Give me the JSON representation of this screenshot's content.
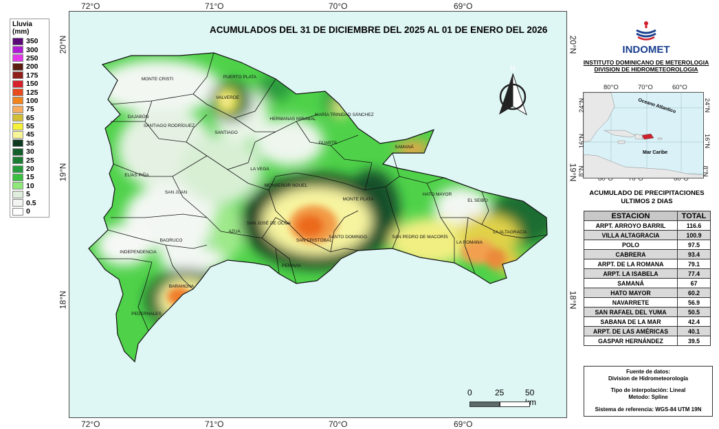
{
  "title": "ACUMULADOS DEL 31 DE DICIEMBRE DEL 2025 AL 01 DE ENERO DEL 2026",
  "legend": {
    "title": "Lluvia (mm)",
    "items": [
      {
        "label": "350",
        "color": "#5a0a78"
      },
      {
        "label": "300",
        "color": "#b01bd6"
      },
      {
        "label": "250",
        "color": "#e238ea"
      },
      {
        "label": "200",
        "color": "#5b1d12"
      },
      {
        "label": "175",
        "color": "#8e1f1a"
      },
      {
        "label": "150",
        "color": "#d6202c"
      },
      {
        "label": "125",
        "color": "#e84a1d"
      },
      {
        "label": "100",
        "color": "#f2841d"
      },
      {
        "label": "75",
        "color": "#f6ad62"
      },
      {
        "label": "65",
        "color": "#d3bf35"
      },
      {
        "label": "55",
        "color": "#f5f03a"
      },
      {
        "label": "45",
        "color": "#f8f596"
      },
      {
        "label": "35",
        "color": "#0f3a1f"
      },
      {
        "label": "30",
        "color": "#155e2c"
      },
      {
        "label": "25",
        "color": "#1d7c33"
      },
      {
        "label": "20",
        "color": "#279b3c"
      },
      {
        "label": "15",
        "color": "#39c13f"
      },
      {
        "label": "10",
        "color": "#8ee87a"
      },
      {
        "label": "5",
        "color": "#dfeedd"
      },
      {
        "label": "0.5",
        "color": "#f3f5f3"
      },
      {
        "label": "0",
        "color": "#ffffff"
      }
    ]
  },
  "ticks": {
    "top": [
      "72°O",
      "71°O",
      "70°O",
      "69°O"
    ],
    "bottom": [
      "72°O",
      "71°O",
      "70°O",
      "69°O"
    ],
    "left": [
      "20°N",
      "19°N",
      "18°N"
    ],
    "right": [
      "20°N",
      "19°N",
      "18°N"
    ]
  },
  "north": "N",
  "provinces": [
    {
      "name": "MONTE CRISTI"
    },
    {
      "name": "PUERTO PLATA"
    },
    {
      "name": "VALVERDE"
    },
    {
      "name": "DAJABÓN"
    },
    {
      "name": "SANTIAGO RODRÍGUEZ"
    },
    {
      "name": "SANTIAGO"
    },
    {
      "name": "HERMANAS MIRABAL"
    },
    {
      "name": "MARÍA TRINIDAD SÁNCHEZ"
    },
    {
      "name": "DUARTE"
    },
    {
      "name": "SAMANÁ"
    },
    {
      "name": "LA VEGA"
    },
    {
      "name": "ELÍAS PIÑA"
    },
    {
      "name": "SAN JUAN"
    },
    {
      "name": "MONSEÑOR NOUEL"
    },
    {
      "name": "MONTE PLATA"
    },
    {
      "name": "HATO MAYOR"
    },
    {
      "name": "EL SEIBO"
    },
    {
      "name": "LA ALTAGRACIA"
    },
    {
      "name": "SAN JOSÉ DE OCOA"
    },
    {
      "name": "AZUA"
    },
    {
      "name": "SAN CRISTÓBAL"
    },
    {
      "name": "SANTO DOMINGO"
    },
    {
      "name": "SAN PEDRO DE MACORÍS"
    },
    {
      "name": "LA ROMANA"
    },
    {
      "name": "BAORUCO"
    },
    {
      "name": "INDEPENDENCIA"
    },
    {
      "name": "BARAHONA"
    },
    {
      "name": "PERAVIA"
    },
    {
      "name": "PEDERNALES"
    }
  ],
  "logo": {
    "name": "INDOMET",
    "line1": "INSTITUTO DOMINICANO DE METEROLOGIA",
    "line2": "DIVISION DE HIDROMETEOROLOGIA"
  },
  "inset": {
    "ticks_top": [
      "80°O",
      "70°O",
      "60°O"
    ],
    "ticks_bottom": [
      "80°O",
      "70°O",
      "60°O"
    ],
    "ticks_left": [
      "24°N",
      "16°N",
      "8°N"
    ],
    "ticks_right": [
      "24°N",
      "16°N",
      "8°N"
    ],
    "ocean_label": "Oceano Atlantico",
    "sea_label": "Mar Caribe"
  },
  "accum_title_1": "ACUMULADO DE PRECIPITACIONES",
  "accum_title_2": "ULTIMOS 2 DIAS",
  "table": {
    "headers": [
      "ESTACION",
      "TOTAL"
    ],
    "rows": [
      {
        "station": "ARPT. ARROYO BARRIL",
        "total": "116.6"
      },
      {
        "station": "VILLA ALTAGRACIA",
        "total": "100.9"
      },
      {
        "station": "POLO",
        "total": "97.5"
      },
      {
        "station": "CABRERA",
        "total": "93.4"
      },
      {
        "station": "ARPT. DE LA ROMANA",
        "total": "79.1"
      },
      {
        "station": "ARPT. LA ISABELA",
        "total": "77.4"
      },
      {
        "station": "SAMANÁ",
        "total": "67"
      },
      {
        "station": "HATO MAYOR",
        "total": "60.2"
      },
      {
        "station": "NAVARRETE",
        "total": "56.9"
      },
      {
        "station": "SAN RAFAEL DEL YUMA",
        "total": "50.5"
      },
      {
        "station": "SABANA DE LA MAR",
        "total": "42.4"
      },
      {
        "station": "ARPT. DE LAS AMÉRICAS",
        "total": "40.1"
      },
      {
        "station": "GASPAR HERNÁNDEZ",
        "total": "39.5"
      }
    ]
  },
  "source": {
    "l1": "Fuente de datos:",
    "l2": "Division de Hidrometeorología",
    "l3": "Tipo de interpolación: Lineal",
    "l4": "Metodo: Spline",
    "l5": "Sistema de referencia: WGS-84 UTM 19N"
  },
  "scale": {
    "l0": "0",
    "l1": "25",
    "l2": "50 km"
  },
  "colors": {
    "sea": "#def6f4",
    "border": "#111111"
  }
}
